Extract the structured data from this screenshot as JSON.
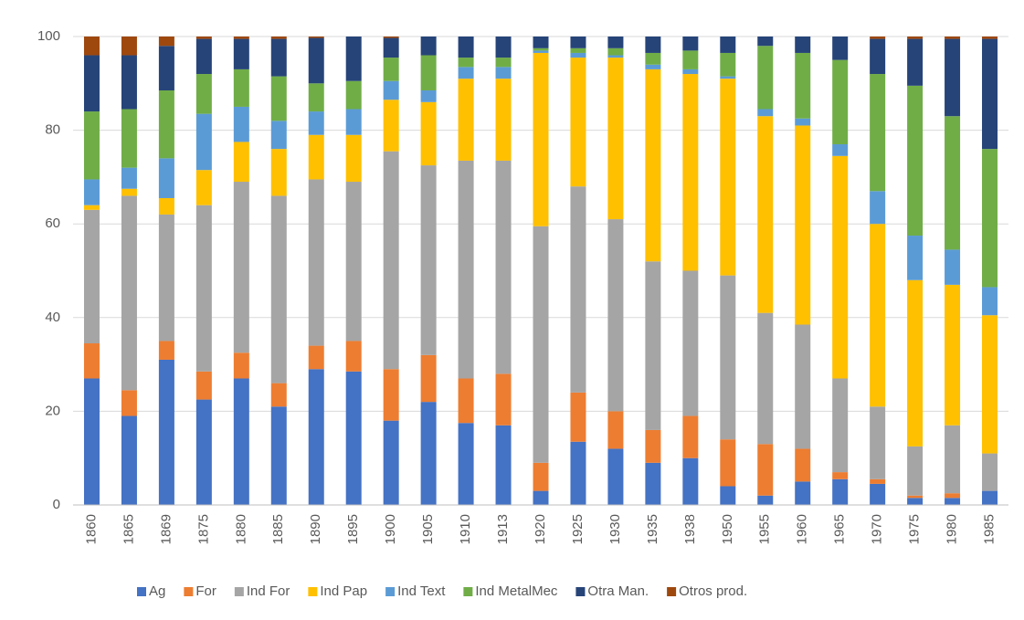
{
  "chart_data": {
    "type": "stacked_bar",
    "categories": [
      "1860",
      "1865",
      "1869",
      "1875",
      "1880",
      "1885",
      "1890",
      "1895",
      "1900",
      "1905",
      "1910",
      "1913",
      "1920",
      "1925",
      "1930",
      "1935",
      "1938",
      "1950",
      "1955",
      "1960",
      "1965",
      "1970",
      "1975",
      "1980",
      "1985"
    ],
    "series": [
      {
        "name": "Ag",
        "color": "#4472c4",
        "values": [
          27,
          19,
          31,
          22.5,
          27,
          21,
          29,
          28.5,
          18,
          22,
          17.5,
          17,
          3,
          13.5,
          12,
          9,
          10,
          4,
          2,
          5,
          5.5,
          4.5,
          1.5,
          1.5,
          3
        ]
      },
      {
        "name": "For",
        "color": "#ed7d31",
        "values": [
          7.5,
          5.5,
          4,
          6,
          5.5,
          5,
          5,
          6.5,
          11,
          10,
          9.5,
          11,
          6,
          10.5,
          8,
          7,
          9,
          10,
          11,
          7,
          1.5,
          1,
          0.5,
          1,
          0
        ]
      },
      {
        "name": "Ind For",
        "color": "#a5a5a5",
        "values": [
          28.5,
          41.5,
          27,
          35.5,
          36.5,
          40,
          35.5,
          34,
          46.5,
          40.5,
          46.5,
          45.5,
          50.5,
          44,
          41,
          36,
          31,
          35,
          28,
          26.5,
          20,
          15.5,
          10.5,
          14.5,
          8
        ]
      },
      {
        "name": "Ind Pap",
        "color": "#ffc000",
        "values": [
          1,
          1.5,
          3.5,
          7.5,
          8.5,
          10,
          9.5,
          10,
          11,
          13.5,
          17.5,
          17.5,
          37,
          27.5,
          34.5,
          41,
          42,
          42,
          42,
          42.5,
          47.5,
          39,
          35.5,
          30,
          29.5
        ]
      },
      {
        "name": "Ind Text",
        "color": "#5b9bd5",
        "values": [
          5.5,
          4.5,
          8.5,
          12,
          7.5,
          6,
          5,
          5.5,
          4,
          2.5,
          2.5,
          2.5,
          0.5,
          1,
          0.5,
          1,
          1,
          0.5,
          1.5,
          1.5,
          2.5,
          7,
          9.5,
          7.5,
          6
        ]
      },
      {
        "name": "Ind MetalMec",
        "color": "#70ad47",
        "values": [
          14.5,
          12.5,
          14.5,
          8.5,
          8,
          9.5,
          6,
          6,
          5,
          7.5,
          2,
          2,
          0.5,
          1,
          1.5,
          2.5,
          4,
          5,
          13.5,
          14,
          18,
          25,
          32,
          28.5,
          29.5
        ]
      },
      {
        "name": "Otra Man.",
        "color": "#264478",
        "values": [
          12,
          11.5,
          9.5,
          7.5,
          6.5,
          8,
          9.7,
          9.5,
          4.2,
          4,
          4.5,
          4.5,
          2.5,
          2.5,
          2.5,
          3.5,
          3,
          3.5,
          2,
          3.5,
          5,
          7.5,
          10,
          16.5,
          23.5
        ]
      },
      {
        "name": "Otros prod.",
        "color": "#9e480e",
        "values": [
          4,
          4,
          2,
          0.5,
          0.5,
          0.5,
          0.3,
          0,
          0.3,
          0,
          0,
          0,
          0,
          0,
          0,
          0,
          0,
          0,
          0,
          0,
          0,
          0.5,
          0.5,
          0.5,
          0.5
        ]
      }
    ],
    "ylim": [
      0,
      100
    ],
    "yticks": [
      0,
      20,
      40,
      60,
      80,
      100
    ],
    "grid": true,
    "legend": "bottom"
  }
}
